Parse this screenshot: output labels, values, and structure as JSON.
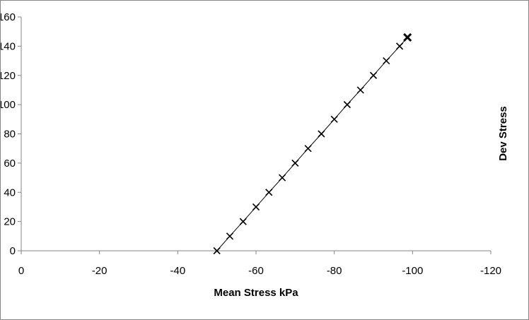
{
  "chart_data": {
    "type": "scatter",
    "title": "",
    "xlabel": "Mean Stress kPa",
    "ylabel": "Dev Stress",
    "xlim": [
      0,
      -120
    ],
    "ylim": [
      0,
      160
    ],
    "x_ticks": [
      "0",
      "-20",
      "-40",
      "-60",
      "-80",
      "-100",
      "-120"
    ],
    "y_ticks": [
      "0",
      "20",
      "40",
      "60",
      "80",
      "100",
      "120",
      "140",
      "160"
    ],
    "grid": false,
    "legend": "none",
    "marker": "x",
    "line_color": "#000000",
    "series": [
      {
        "x": [
          -50,
          -53.3,
          -56.7,
          -60,
          -63.3,
          -66.7,
          -70,
          -73.3,
          -76.7,
          -80,
          -83.3,
          -86.7,
          -90,
          -93.3,
          -96.7,
          -98.7
        ],
        "y": [
          0,
          10,
          20,
          30,
          40,
          50,
          60,
          70,
          80,
          90,
          100,
          110,
          120,
          130,
          140,
          146
        ]
      }
    ]
  }
}
